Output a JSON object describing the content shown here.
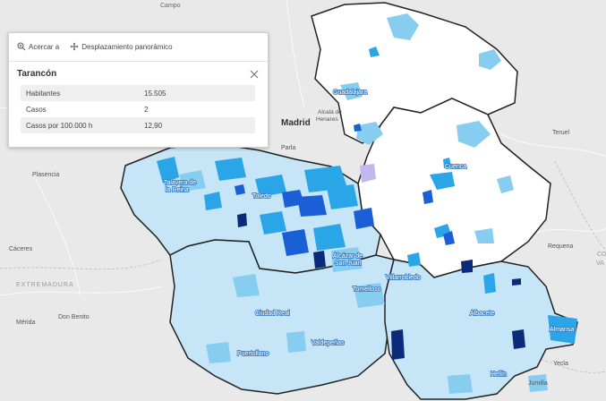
{
  "map": {
    "places": {
      "campo": "Campo",
      "madrid": "Madrid",
      "alcala": "Alcalá de Henares",
      "parla": "Parla",
      "plasencia": "Plasencia",
      "caceres": "Cáceres",
      "extremadura": "EXTREMADURA",
      "merida": "Mérida",
      "don_benito": "Don Benito",
      "teruel": "Teruel",
      "requena": "Requena",
      "valencia_partial": "CO\nVA",
      "yecla": "Yecla",
      "jumilla": "Jumilla",
      "guadalajara": "Guadalajara",
      "cuenca": "Cuenca",
      "toledo": "Toledo",
      "talavera": "Talavera de la Reina",
      "alcazar": "Alcázar de San Juan",
      "tomelloso": "Tomelloso",
      "villarrobledo": "Villarrobledo",
      "albacete": "Albacete",
      "almansa": "Almansa",
      "hellin": "Hellín",
      "ciudad_real": "Ciudad Real",
      "puertollano": "Puertollano",
      "valdepenas": "Valdepeñas"
    },
    "colors": {
      "background": "#e9e9e9",
      "outline": "#222222",
      "class_none": "#ffffff",
      "class_low": "#c6e6f7",
      "class_mid": "#86cdf0",
      "class_high": "#2aa6e8",
      "class_very_high": "#1a5fd6",
      "class_max": "#0b2b7a"
    }
  },
  "popup": {
    "toolbar": {
      "zoom_label": "Acercar a",
      "pan_label": "Desplazamiento panorámico",
      "zoom_icon": "zoom-in-icon",
      "pan_icon": "pan-arrows-icon"
    },
    "title": "Tarancón",
    "close_icon": "close-icon",
    "rows": [
      {
        "label": "Habitantes",
        "value": "15.505"
      },
      {
        "label": "Casos",
        "value": "2"
      },
      {
        "label": "Casos por 100.000 h",
        "value": "12,90"
      }
    ]
  }
}
